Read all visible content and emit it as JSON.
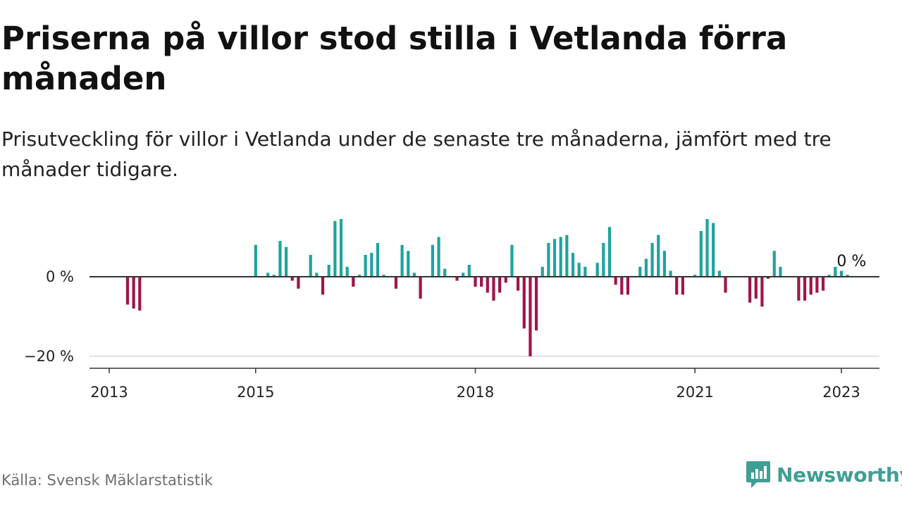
{
  "title": "Priserna på villor stod stilla i Vetlanda förra månaden",
  "subtitle": "Prisutveckling för villor i Vetlanda under de senaste tre månaderna, jämfört med tre månader tidigare.",
  "source": "Källa: Svensk Mäklarstatistik",
  "brand": "Newsworthy",
  "colors": {
    "positive": "#1fa39c",
    "negative": "#a3134a",
    "zero_line": "#333333",
    "grid": "#d9d9d9",
    "brand": "#3f9e95"
  },
  "chart_data": {
    "type": "bar",
    "title": "Priserna på villor stod stilla i Vetlanda förra månaden",
    "subtitle": "Prisutveckling för villor i Vetlanda under de senaste tre månaderna, jämfört med tre månader tidigare.",
    "xlabel": "",
    "ylabel": "",
    "unit": "%",
    "ylim": [
      -23,
      16
    ],
    "y_ticks": [
      {
        "value": 0,
        "label": "0 %"
      },
      {
        "value": -20,
        "label": "−20 %"
      }
    ],
    "x_ticks": [
      {
        "value": "2013-01",
        "label": "2013"
      },
      {
        "value": "2015-01",
        "label": "2015"
      },
      {
        "value": "2018-01",
        "label": "2018"
      },
      {
        "value": "2021-01",
        "label": "2021"
      },
      {
        "value": "2023-01",
        "label": "2023"
      }
    ],
    "x_range": [
      "2012-10",
      "2023-06"
    ],
    "last_value_label": "0 %",
    "data": [
      {
        "month": "2013-04",
        "value": -7
      },
      {
        "month": "2013-05",
        "value": -8
      },
      {
        "month": "2013-06",
        "value": -8.5
      },
      {
        "month": "2015-01",
        "value": 8
      },
      {
        "month": "2015-03",
        "value": 1
      },
      {
        "month": "2015-04",
        "value": 0.5
      },
      {
        "month": "2015-05",
        "value": 9
      },
      {
        "month": "2015-06",
        "value": 7.5
      },
      {
        "month": "2015-07",
        "value": -1
      },
      {
        "month": "2015-08",
        "value": -3
      },
      {
        "month": "2015-10",
        "value": 5.5
      },
      {
        "month": "2015-11",
        "value": 1
      },
      {
        "month": "2015-12",
        "value": -4.5
      },
      {
        "month": "2016-01",
        "value": 3
      },
      {
        "month": "2016-02",
        "value": 14
      },
      {
        "month": "2016-03",
        "value": 14.5
      },
      {
        "month": "2016-04",
        "value": 2.5
      },
      {
        "month": "2016-05",
        "value": -2.5
      },
      {
        "month": "2016-06",
        "value": 0.5
      },
      {
        "month": "2016-07",
        "value": 5.5
      },
      {
        "month": "2016-08",
        "value": 6
      },
      {
        "month": "2016-09",
        "value": 8.5
      },
      {
        "month": "2016-10",
        "value": 0.5
      },
      {
        "month": "2016-12",
        "value": -3
      },
      {
        "month": "2017-01",
        "value": 8
      },
      {
        "month": "2017-02",
        "value": 6.5
      },
      {
        "month": "2017-03",
        "value": 1
      },
      {
        "month": "2017-04",
        "value": -5.5
      },
      {
        "month": "2017-06",
        "value": 8
      },
      {
        "month": "2017-07",
        "value": 10
      },
      {
        "month": "2017-08",
        "value": 2
      },
      {
        "month": "2017-10",
        "value": -1
      },
      {
        "month": "2017-11",
        "value": 1
      },
      {
        "month": "2017-12",
        "value": 3
      },
      {
        "month": "2018-01",
        "value": -2.5
      },
      {
        "month": "2018-02",
        "value": -2.5
      },
      {
        "month": "2018-03",
        "value": -4
      },
      {
        "month": "2018-04",
        "value": -6
      },
      {
        "month": "2018-05",
        "value": -4
      },
      {
        "month": "2018-06",
        "value": -1.5
      },
      {
        "month": "2018-07",
        "value": 8
      },
      {
        "month": "2018-08",
        "value": -3.5
      },
      {
        "month": "2018-09",
        "value": -13
      },
      {
        "month": "2018-10",
        "value": -20
      },
      {
        "month": "2018-11",
        "value": -13.5
      },
      {
        "month": "2018-12",
        "value": 2.5
      },
      {
        "month": "2019-01",
        "value": 8.5
      },
      {
        "month": "2019-02",
        "value": 9.5
      },
      {
        "month": "2019-03",
        "value": 10
      },
      {
        "month": "2019-04",
        "value": 10.5
      },
      {
        "month": "2019-05",
        "value": 6
      },
      {
        "month": "2019-06",
        "value": 3.5
      },
      {
        "month": "2019-07",
        "value": 2.5
      },
      {
        "month": "2019-09",
        "value": 3.5
      },
      {
        "month": "2019-10",
        "value": 8.5
      },
      {
        "month": "2019-11",
        "value": 12.5
      },
      {
        "month": "2019-12",
        "value": -2
      },
      {
        "month": "2020-01",
        "value": -4.5
      },
      {
        "month": "2020-02",
        "value": -4.5
      },
      {
        "month": "2020-04",
        "value": 2.5
      },
      {
        "month": "2020-05",
        "value": 4.5
      },
      {
        "month": "2020-06",
        "value": 8.5
      },
      {
        "month": "2020-07",
        "value": 10.5
      },
      {
        "month": "2020-08",
        "value": 6.5
      },
      {
        "month": "2020-09",
        "value": 1.5
      },
      {
        "month": "2020-10",
        "value": -4.5
      },
      {
        "month": "2020-11",
        "value": -4.5
      },
      {
        "month": "2021-01",
        "value": 0.5
      },
      {
        "month": "2021-02",
        "value": 11.5
      },
      {
        "month": "2021-03",
        "value": 14.5
      },
      {
        "month": "2021-04",
        "value": 13.5
      },
      {
        "month": "2021-05",
        "value": 1.5
      },
      {
        "month": "2021-06",
        "value": -4
      },
      {
        "month": "2021-10",
        "value": -6.5
      },
      {
        "month": "2021-11",
        "value": -5.5
      },
      {
        "month": "2021-12",
        "value": -7.5
      },
      {
        "month": "2022-01",
        "value": -0.5
      },
      {
        "month": "2022-02",
        "value": 6.5
      },
      {
        "month": "2022-03",
        "value": 2.5
      },
      {
        "month": "2022-06",
        "value": -6
      },
      {
        "month": "2022-07",
        "value": -6
      },
      {
        "month": "2022-08",
        "value": -4.5
      },
      {
        "month": "2022-09",
        "value": -4
      },
      {
        "month": "2022-10",
        "value": -3.5
      },
      {
        "month": "2022-11",
        "value": 0.5
      },
      {
        "month": "2022-12",
        "value": 2.5
      },
      {
        "month": "2023-01",
        "value": 1.5
      },
      {
        "month": "2023-02",
        "value": 0.5
      },
      {
        "month": "2023-03",
        "value": 0
      }
    ]
  }
}
